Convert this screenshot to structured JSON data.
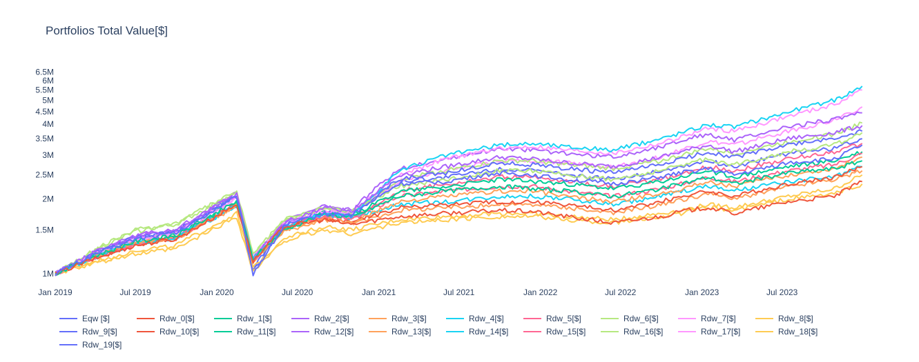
{
  "chart_data": {
    "type": "line",
    "title": "Portfolios Total Value[$]",
    "xlabel": "",
    "ylabel": "",
    "y_scale": "log",
    "ylim": [
      950000,
      6900000
    ],
    "xlim": [
      "2019-01-01",
      "2023-12-31"
    ],
    "x_ticks": [
      {
        "date": "2019-01-01",
        "label": "Jan 2019"
      },
      {
        "date": "2019-07-01",
        "label": "Jul 2019"
      },
      {
        "date": "2020-01-01",
        "label": "Jan 2020"
      },
      {
        "date": "2020-07-01",
        "label": "Jul 2020"
      },
      {
        "date": "2021-01-01",
        "label": "Jan 2021"
      },
      {
        "date": "2021-07-01",
        "label": "Jul 2021"
      },
      {
        "date": "2022-01-01",
        "label": "Jan 2022"
      },
      {
        "date": "2022-07-01",
        "label": "Jul 2022"
      },
      {
        "date": "2023-01-01",
        "label": "Jan 2023"
      },
      {
        "date": "2023-07-01",
        "label": "Jul 2023"
      }
    ],
    "y_ticks": [
      {
        "value": 1000000,
        "label": "1M"
      },
      {
        "value": 1500000,
        "label": "1.5M"
      },
      {
        "value": 2000000,
        "label": "2M"
      },
      {
        "value": 2500000,
        "label": "2.5M"
      },
      {
        "value": 3000000,
        "label": "3M"
      },
      {
        "value": 3500000,
        "label": "3.5M"
      },
      {
        "value": 4000000,
        "label": "4M"
      },
      {
        "value": 4500000,
        "label": "4.5M"
      },
      {
        "value": 5000000,
        "label": "5M"
      },
      {
        "value": 5500000,
        "label": "5.5M"
      },
      {
        "value": 6000000,
        "label": "6M"
      },
      {
        "value": 6500000,
        "label": "6.5M"
      }
    ],
    "grid": false,
    "legend_position": "bottom",
    "x": [
      "2019-01-01",
      "2019-04-01",
      "2019-07-01",
      "2019-10-01",
      "2020-02-15",
      "2020-03-23",
      "2020-06-01",
      "2020-09-01",
      "2020-10-30",
      "2021-02-15",
      "2021-06-01",
      "2021-10-01",
      "2021-12-15",
      "2022-03-01",
      "2022-06-15",
      "2022-09-30",
      "2022-11-15",
      "2023-01-15",
      "2023-03-15",
      "2023-07-15",
      "2023-10-27",
      "2023-12-29"
    ],
    "series": [
      {
        "name": "Eqw [$]",
        "color": "#636efa",
        "values": [
          1000000,
          1200000,
          1380000,
          1460000,
          2050000,
          1000000,
          1560000,
          1750000,
          1720000,
          2300000,
          2350000,
          2550000,
          2500000,
          2400000,
          2300000,
          2450000,
          2550000,
          2650000,
          2500000,
          2800000,
          2900000,
          3300000
        ]
      },
      {
        "name": "Rdw_0[$]",
        "color": "#EF553B",
        "values": [
          1000000,
          1150000,
          1300000,
          1380000,
          1900000,
          1120000,
          1550000,
          1650000,
          1580000,
          1700000,
          1750000,
          1800000,
          1780000,
          1700000,
          1600000,
          1700000,
          1780000,
          1850000,
          1750000,
          1950000,
          2050000,
          2350000
        ]
      },
      {
        "name": "Rdw_1[$]",
        "color": "#00cc96",
        "values": [
          1000000,
          1180000,
          1350000,
          1420000,
          1950000,
          1150000,
          1500000,
          1750000,
          1680000,
          2050000,
          2150000,
          2250000,
          2200000,
          2150000,
          2050000,
          2200000,
          2300000,
          2450000,
          2300000,
          2550000,
          2650000,
          2850000
        ]
      },
      {
        "name": "Rdw_2[$]",
        "color": "#ab63fa",
        "values": [
          1000000,
          1220000,
          1420000,
          1500000,
          2100000,
          1150000,
          1600000,
          1850000,
          1780000,
          2500000,
          2700000,
          2950000,
          2900000,
          2800000,
          2700000,
          2950000,
          3100000,
          3300000,
          3100000,
          3500000,
          3700000,
          3950000
        ]
      },
      {
        "name": "Rdw_3[$]",
        "color": "#FFA15A",
        "values": [
          1000000,
          1180000,
          1340000,
          1400000,
          1880000,
          1130000,
          1500000,
          1680000,
          1600000,
          1950000,
          2050000,
          2150000,
          2150000,
          2050000,
          1950000,
          2100000,
          2200000,
          2350000,
          2250000,
          2500000,
          2650000,
          2950000
        ]
      },
      {
        "name": "Rdw_4[$]",
        "color": "#19d3f3",
        "values": [
          1000000,
          1170000,
          1330000,
          1400000,
          1900000,
          1150000,
          1550000,
          1750000,
          1700000,
          2600000,
          3000000,
          3300000,
          3350000,
          3250000,
          3150000,
          3500000,
          3700000,
          4000000,
          3900000,
          4500000,
          5000000,
          5700000
        ]
      },
      {
        "name": "Rdw_5[$]",
        "color": "#FF6692",
        "values": [
          1000000,
          1160000,
          1320000,
          1390000,
          1920000,
          1130000,
          1520000,
          1720000,
          1650000,
          2050000,
          2150000,
          2250000,
          2250000,
          2150000,
          2050000,
          2200000,
          2300000,
          2450000,
          2350000,
          2600000,
          2750000,
          3050000
        ]
      },
      {
        "name": "Rdw_6[$]",
        "color": "#B6E880",
        "values": [
          1000000,
          1250000,
          1500000,
          1600000,
          2150000,
          1200000,
          1650000,
          1850000,
          1780000,
          2250000,
          2400000,
          2600000,
          2600000,
          2500000,
          2400000,
          2600000,
          2750000,
          2900000,
          2750000,
          3100000,
          3300000,
          3700000
        ]
      },
      {
        "name": "Rdw_7[$]",
        "color": "#FF97FF",
        "values": [
          1000000,
          1190000,
          1370000,
          1450000,
          2000000,
          1170000,
          1600000,
          1800000,
          1750000,
          2500000,
          2900000,
          3200000,
          3250000,
          3150000,
          3050000,
          3350000,
          3550000,
          3850000,
          3750000,
          4300000,
          4800000,
          5500000
        ]
      },
      {
        "name": "Rdw_8[$]",
        "color": "#FECB52",
        "values": [
          1000000,
          1120000,
          1240000,
          1300000,
          1750000,
          1050000,
          1400000,
          1550000,
          1500000,
          1650000,
          1700000,
          1750000,
          1750000,
          1700000,
          1650000,
          1750000,
          1800000,
          1900000,
          1850000,
          2050000,
          2200000,
          2500000
        ]
      },
      {
        "name": "Rdw_9[$]",
        "color": "#636efa",
        "values": [
          1000000,
          1210000,
          1400000,
          1480000,
          2080000,
          1050000,
          1580000,
          1780000,
          1740000,
          2400000,
          2550000,
          2800000,
          2750000,
          2650000,
          2550000,
          2750000,
          2900000,
          3100000,
          2950000,
          3300000,
          3500000,
          3750000
        ]
      },
      {
        "name": "Rdw_10[$]",
        "color": "#EF553B",
        "values": [
          1000000,
          1160000,
          1310000,
          1390000,
          1920000,
          1130000,
          1560000,
          1670000,
          1600000,
          1850000,
          1900000,
          1950000,
          1950000,
          1900000,
          1800000,
          1950000,
          2050000,
          2150000,
          2050000,
          2300000,
          2450000,
          2700000
        ]
      },
      {
        "name": "Rdw_11[$]",
        "color": "#00cc96",
        "values": [
          1000000,
          1190000,
          1360000,
          1430000,
          1970000,
          1160000,
          1520000,
          1760000,
          1700000,
          2150000,
          2250000,
          2400000,
          2350000,
          2300000,
          2200000,
          2350000,
          2450000,
          2600000,
          2450000,
          2700000,
          2850000,
          3100000
        ]
      },
      {
        "name": "Rdw_12[$]",
        "color": "#ab63fa",
        "values": [
          1000000,
          1230000,
          1430000,
          1510000,
          2120000,
          1160000,
          1620000,
          1870000,
          1800000,
          2650000,
          2900000,
          3200000,
          3150000,
          3050000,
          2950000,
          3250000,
          3450000,
          3650000,
          3450000,
          3900000,
          4200000,
          4450000
        ]
      },
      {
        "name": "Rdw_13[$]",
        "color": "#FFA15A",
        "values": [
          1000000,
          1170000,
          1320000,
          1390000,
          1860000,
          1120000,
          1480000,
          1650000,
          1580000,
          1800000,
          1850000,
          1900000,
          1900000,
          1850000,
          1750000,
          1900000,
          1980000,
          2100000,
          2000000,
          2250000,
          2400000,
          2600000
        ]
      },
      {
        "name": "Rdw_14[$]",
        "color": "#19d3f3",
        "values": [
          1000000,
          1160000,
          1320000,
          1390000,
          1880000,
          1140000,
          1530000,
          1720000,
          1680000,
          1900000,
          1950000,
          2050000,
          2050000,
          2000000,
          1900000,
          2050000,
          2150000,
          2250000,
          2150000,
          2350000,
          2450000,
          2700000
        ]
      },
      {
        "name": "Rdw_15[$]",
        "color": "#FF6692",
        "values": [
          1000000,
          1170000,
          1330000,
          1400000,
          1930000,
          1140000,
          1530000,
          1730000,
          1660000,
          2150000,
          2300000,
          2450000,
          2450000,
          2350000,
          2250000,
          2400000,
          2500000,
          2700000,
          2600000,
          2900000,
          3100000,
          3350000
        ]
      },
      {
        "name": "Rdw_16[$]",
        "color": "#B6E880",
        "values": [
          1000000,
          1240000,
          1480000,
          1580000,
          2120000,
          1190000,
          1630000,
          1830000,
          1760000,
          2400000,
          2600000,
          2850000,
          2850000,
          2750000,
          2650000,
          2850000,
          3000000,
          3200000,
          3050000,
          3400000,
          3650000,
          4050000
        ]
      },
      {
        "name": "Rdw_17[$]",
        "color": "#FF97FF",
        "values": [
          1000000,
          1200000,
          1380000,
          1460000,
          2020000,
          1180000,
          1610000,
          1810000,
          1760000,
          2350000,
          2600000,
          2850000,
          2850000,
          2800000,
          2700000,
          2950000,
          3150000,
          3400000,
          3300000,
          3750000,
          4150000,
          4700000
        ]
      },
      {
        "name": "Rdw_18[$]",
        "color": "#FECB52",
        "values": [
          1000000,
          1100000,
          1200000,
          1260000,
          1700000,
          1020000,
          1360000,
          1500000,
          1450000,
          1600000,
          1650000,
          1700000,
          1700000,
          1650000,
          1600000,
          1700000,
          1750000,
          1850000,
          1800000,
          2000000,
          2100000,
          2300000
        ]
      },
      {
        "name": "Rdw_19[$]",
        "color": "#636efa",
        "values": [
          1000000,
          1200000,
          1390000,
          1470000,
          2060000,
          1020000,
          1570000,
          1760000,
          1730000,
          2350000,
          2450000,
          2650000,
          2600000,
          2500000,
          2400000,
          2600000,
          2700000,
          2850000,
          2700000,
          3050000,
          3200000,
          3500000
        ]
      }
    ]
  }
}
